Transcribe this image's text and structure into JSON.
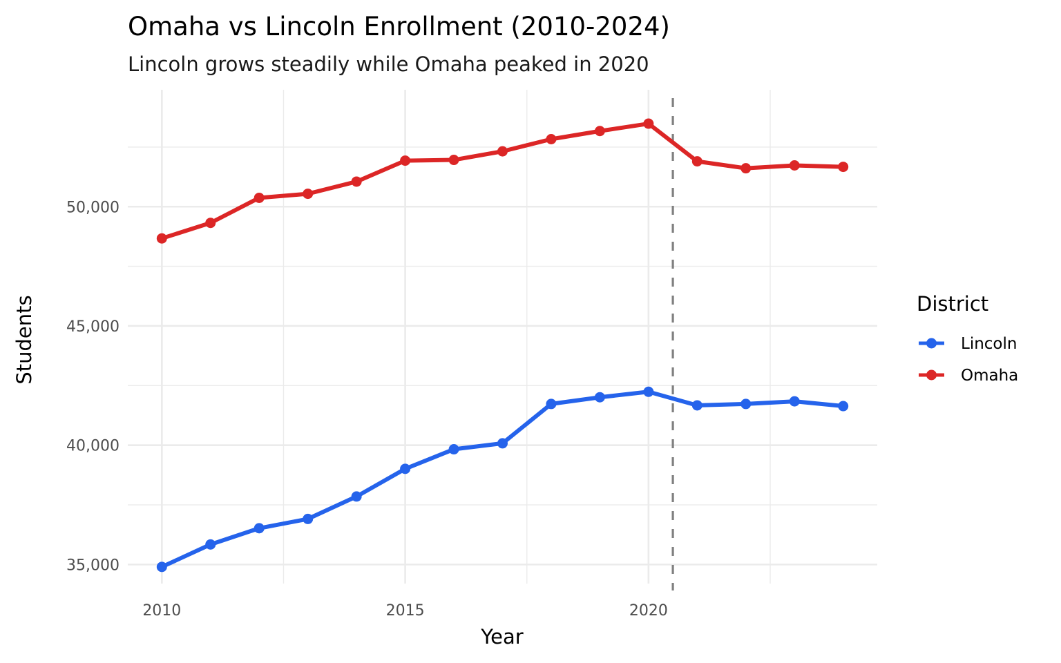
{
  "chart_data": {
    "type": "line",
    "title": "Omaha vs Lincoln Enrollment (2010-2024)",
    "subtitle": "Lincoln grows steadily while Omaha peaked in 2020",
    "xlabel": "Year",
    "ylabel": "Students",
    "x": [
      2010,
      2011,
      2012,
      2013,
      2014,
      2015,
      2016,
      2017,
      2018,
      2019,
      2020,
      2021,
      2022,
      2023,
      2024
    ],
    "xlim": [
      2009.3,
      2024.7
    ],
    "ylim": [
      34200,
      54900
    ],
    "x_ticks": [
      2010,
      2015,
      2020
    ],
    "x_tick_labels": [
      "2010",
      "2015",
      "2020"
    ],
    "x_minor_ticks": [
      2012.5,
      2017.5,
      2022.5
    ],
    "y_ticks": [
      35000,
      40000,
      45000,
      50000
    ],
    "y_tick_labels": [
      "35,000",
      "40,000",
      "45,000",
      "50,000"
    ],
    "y_minor_ticks": [
      37500,
      42500,
      47500,
      52500
    ],
    "grid": true,
    "legend": {
      "title": "District",
      "placement": "right"
    },
    "series": [
      {
        "name": "Lincoln",
        "color": "#2563eb",
        "values": [
          34900,
          35840,
          36520,
          36910,
          37850,
          39010,
          39830,
          40080,
          41730,
          42010,
          42240,
          41670,
          41730,
          41840,
          41640
        ]
      },
      {
        "name": "Omaha",
        "color": "#dc2626",
        "values": [
          48670,
          49320,
          50370,
          50540,
          51050,
          51930,
          51960,
          52320,
          52830,
          53170,
          53480,
          51900,
          51610,
          51730,
          51670
        ]
      }
    ],
    "annotations": [
      {
        "type": "vline",
        "x": 2020.5,
        "style": "dashed",
        "color": "#808080"
      }
    ]
  }
}
